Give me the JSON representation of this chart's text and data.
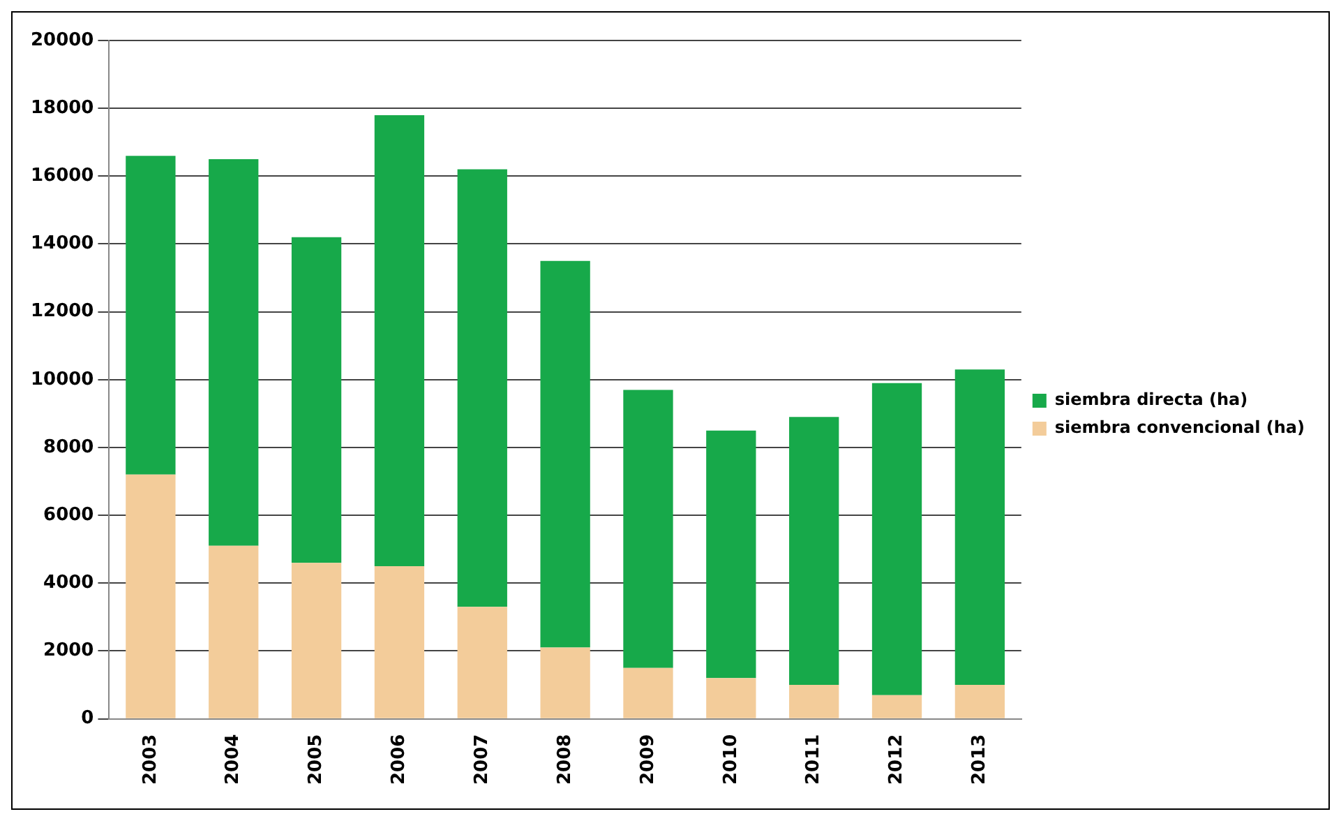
{
  "chart_data": {
    "type": "bar",
    "stacked": true,
    "categories": [
      "2003",
      "2004",
      "2005",
      "2006",
      "2007",
      "2008",
      "2009",
      "2010",
      "2011",
      "2012",
      "2013"
    ],
    "series": [
      {
        "name": "siembra convencional (ha)",
        "color": "#f3cc9a",
        "values": [
          7200,
          5100,
          4600,
          4500,
          3300,
          2100,
          1500,
          1200,
          1000,
          700,
          1000
        ]
      },
      {
        "name": "siembra directa (ha)",
        "color": "#17a94a",
        "values": [
          9400,
          11400,
          9600,
          13300,
          12900,
          11400,
          8200,
          7300,
          7900,
          9200,
          9300
        ]
      }
    ],
    "ylim": [
      0,
      20000
    ],
    "yticks": [
      0,
      2000,
      4000,
      6000,
      8000,
      10000,
      12000,
      14000,
      16000,
      18000,
      20000
    ],
    "grid": "y",
    "legend": "right"
  }
}
